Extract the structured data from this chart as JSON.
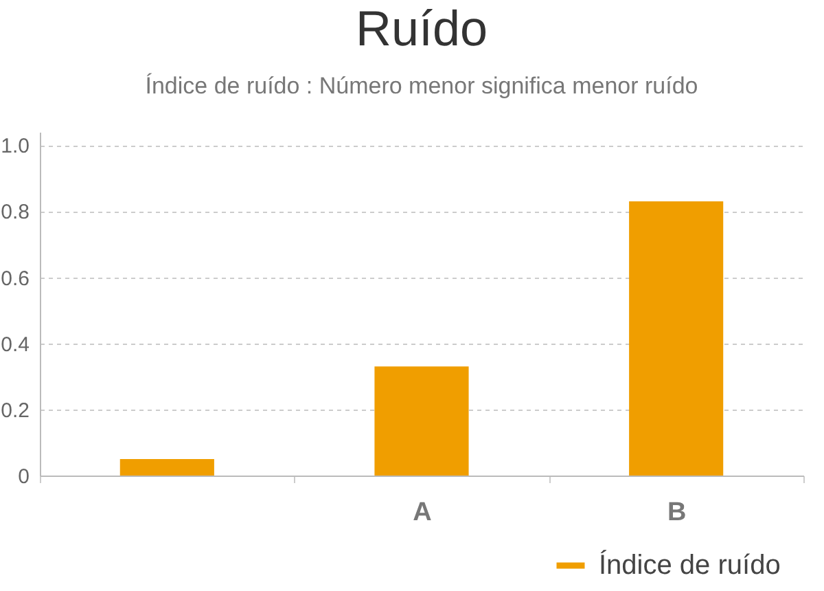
{
  "chart_data": {
    "type": "bar",
    "title": "Ruído",
    "subtitle": "Índice de ruído : Número menor significa menor ruído",
    "categories": [
      null,
      "A",
      "B"
    ],
    "series": [
      {
        "name": "Índice de ruído",
        "color": "#f09e00",
        "values": [
          0.05,
          0.33,
          0.83
        ]
      }
    ],
    "ylim": [
      0,
      1.04
    ],
    "yticks": [
      0,
      0.2,
      0.4,
      0.6,
      0.8,
      {
        "value": 1,
        "label": "1.0"
      }
    ],
    "grid": "y",
    "legend": "bottom right"
  }
}
